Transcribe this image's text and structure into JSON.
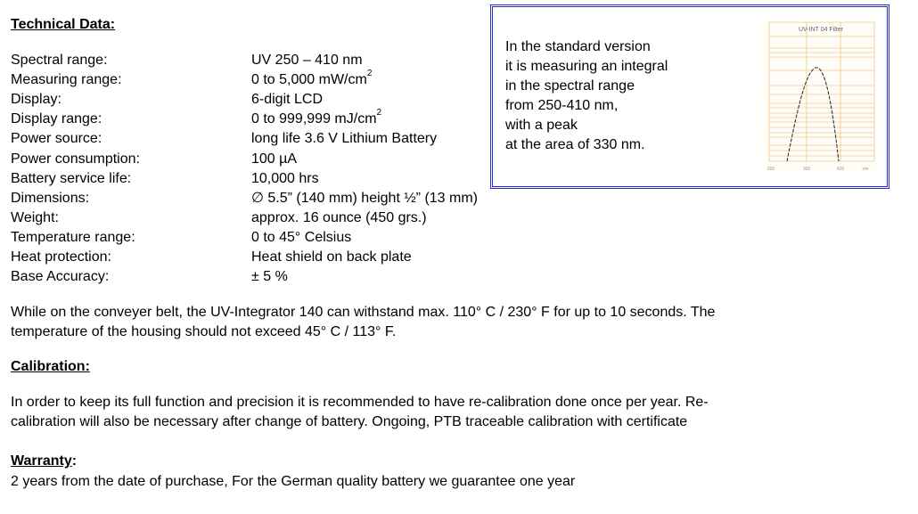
{
  "technical": {
    "heading": "Technical Data:",
    "rows": [
      {
        "label": "Spectral range:",
        "value": "UV 250 – 410 nm"
      },
      {
        "label": "Measuring range:",
        "value": "0 to 5,000 mW/cm",
        "sup": "2"
      },
      {
        "label": "Display:",
        "value": "6-digit LCD"
      },
      {
        "label": "Display range:",
        "value": "0 to 999,999 mJ/cm",
        "sup": "2"
      },
      {
        "label": "Power source:",
        "value": "long life 3.6 V Lithium Battery"
      },
      {
        "label": "Power consumption:",
        "value": "100 µA"
      },
      {
        "label": "Battery service life:",
        "value": "10,000 hrs"
      },
      {
        "label": "Dimensions:",
        "value": "∅ 5.5” (140 mm) height ½” (13 mm)"
      },
      {
        "label": "Weight:",
        "value": "approx. 16 ounce (450 grs.)"
      },
      {
        "label": "Temperature range:",
        "value": "0 to 45° Celsius"
      },
      {
        "label": "Heat protection:",
        "value": "Heat shield on back plate"
      },
      {
        "label": "Base Accuracy:",
        "value": "± 5 %"
      }
    ]
  },
  "infobox": {
    "lines": [
      "In the standard version",
      "it is measuring an integral",
      "in the spectral range",
      "from 250-410 nm,",
      "with a peak",
      "at the area of 330 nm."
    ],
    "chart_title": "UV-INT 04 Filter",
    "x_ticks": [
      "200",
      "300",
      "400",
      "nm"
    ],
    "grid_color": "#f0b060"
  },
  "heat_note": [
    "While on the conveyer belt, the UV-Integrator 140 can withstand max. 110° C / 230° F for up to 10 seconds. The",
    "temperature of the housing should not exceed 45° C / 113° F."
  ],
  "calibration": {
    "heading": "Calibration:",
    "lines": [
      "In order to keep its full function and precision it is recommended to have re-calibration done once per year. Re-",
      "calibration will also be necessary after change of battery. Ongoing, PTB traceable calibration with certificate"
    ]
  },
  "warranty": {
    "heading": "Warranty",
    "colon": ":",
    "text": "2 years from the date of purchase, For the German quality battery we guarantee one year"
  }
}
